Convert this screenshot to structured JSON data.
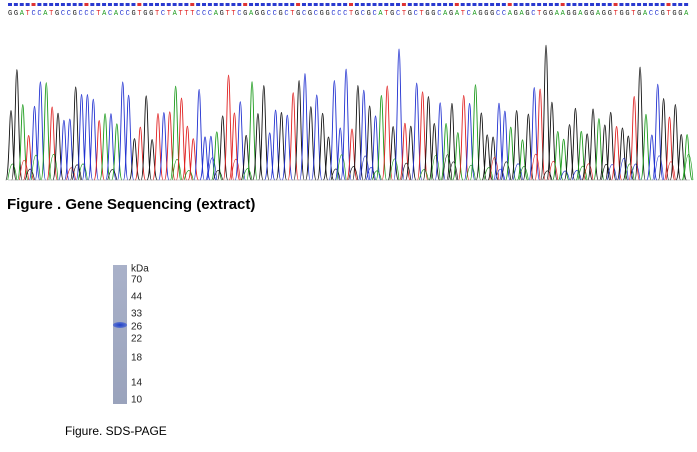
{
  "sequence": "GGATCCATGCCGCCCTACACCGTGGTCTATTTCCCAGTTCGAGGCCGCTGCGCGGCCCTGCGCATGCTGCTGGCAGATCAGGGCCAGAGCTGGAAGGAGGAGGTGGTGACCGTGGA",
  "sequencing_caption": "Figure . Gene Sequencing (extract)",
  "gel": {
    "unit": "kDa",
    "markers": [
      "70",
      "44",
      "33",
      "26",
      "22",
      "18",
      "14",
      "10"
    ]
  },
  "gel_caption": "Figure. SDS-PAGE"
}
